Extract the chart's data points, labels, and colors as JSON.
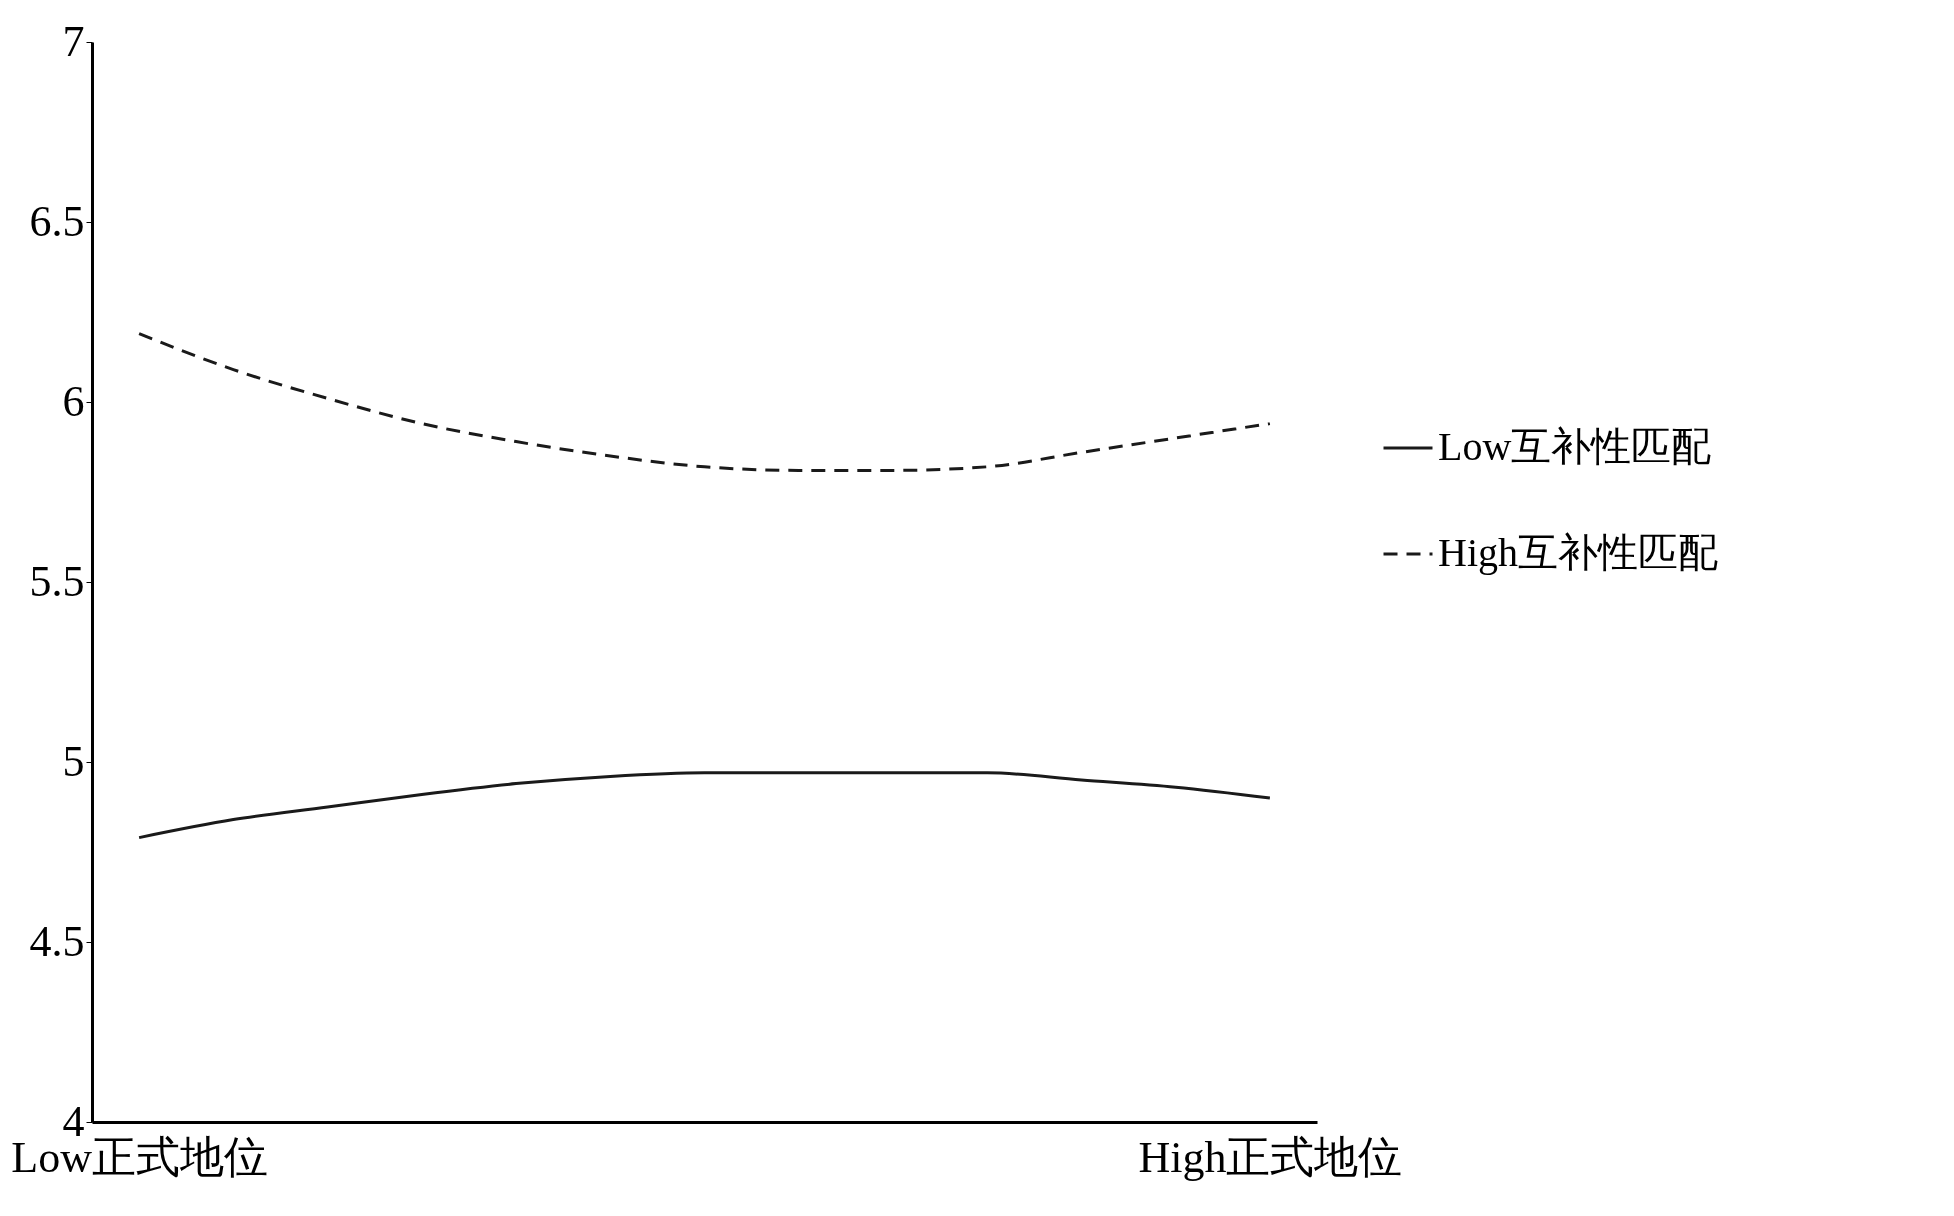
{
  "chart_data": {
    "type": "line",
    "categories": [
      "Low正式地位",
      null,
      null,
      null,
      null,
      null,
      null,
      null,
      null,
      null,
      null,
      null,
      "High正式地位"
    ],
    "series": [
      {
        "name": "Low互补性匹配",
        "color": "#1a1a1a",
        "line_style": "solid",
        "values": [
          4.79,
          4.84,
          4.875,
          4.91,
          4.94,
          4.96,
          4.97,
          4.97,
          4.97,
          4.97,
          4.95,
          4.93,
          4.9
        ]
      },
      {
        "name": "High互补性匹配",
        "color": "#1a1a1a",
        "line_style": "dashed",
        "values": [
          6.19,
          6.09,
          6.01,
          5.94,
          5.89,
          5.85,
          5.82,
          5.81,
          5.81,
          5.82,
          5.86,
          5.9,
          5.94
        ]
      }
    ],
    "ylim": [
      4,
      7
    ],
    "yticks": [
      4,
      4.5,
      5,
      5.5,
      6,
      6.5,
      7
    ],
    "grid": false,
    "legend": "right"
  }
}
